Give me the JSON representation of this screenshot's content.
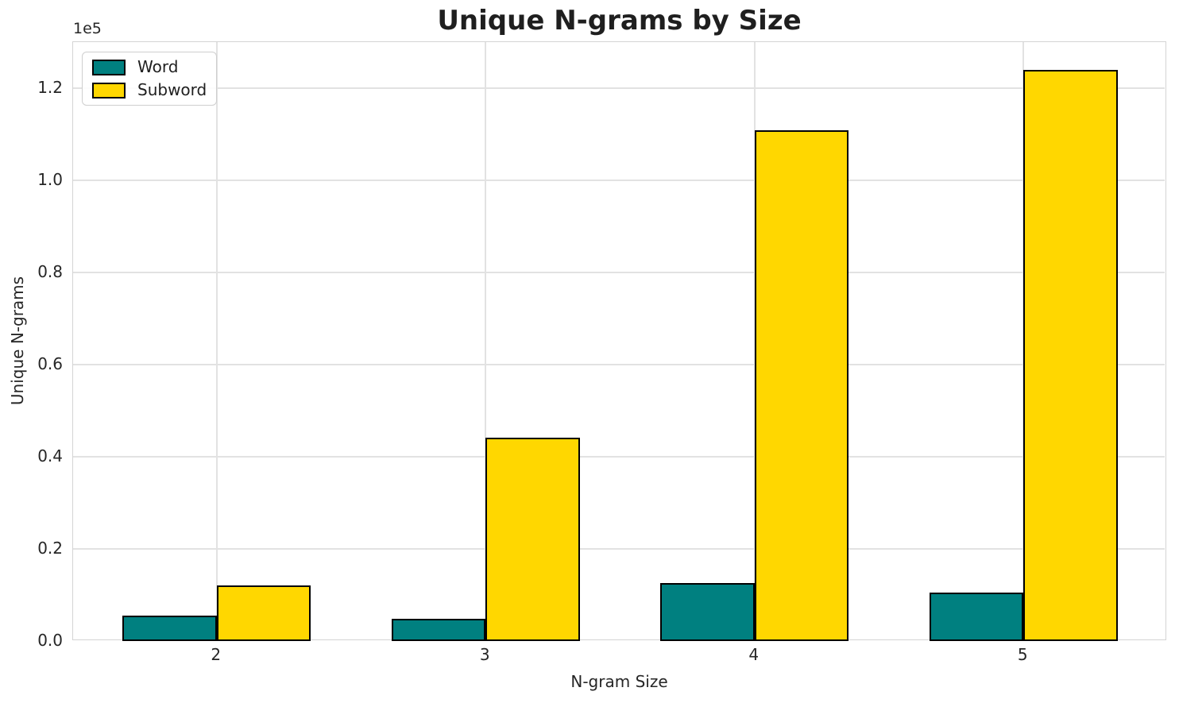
{
  "chart_data": {
    "type": "bar",
    "title": "Unique N-grams by Size",
    "xlabel": "N-gram Size",
    "ylabel": "Unique N-grams",
    "categories": [
      "2",
      "3",
      "4",
      "5"
    ],
    "series": [
      {
        "name": "Word",
        "color": "#008080",
        "values": [
          5500,
          4800,
          12600,
          10500
        ]
      },
      {
        "name": "Subword",
        "color": "#FFD700",
        "values": [
          12100,
          44200,
          110800,
          123900
        ]
      }
    ],
    "bar_edge_color": "#000000",
    "ylim": [
      0,
      130000
    ],
    "yticks": [
      0,
      20000,
      40000,
      60000,
      80000,
      100000,
      120000
    ],
    "ytick_labels": [
      "0.0",
      "0.2",
      "0.4",
      "0.6",
      "0.8",
      "1.0",
      "1.2"
    ],
    "ytick_offset": "1e5",
    "grid": true,
    "legend_position": "upper left"
  }
}
